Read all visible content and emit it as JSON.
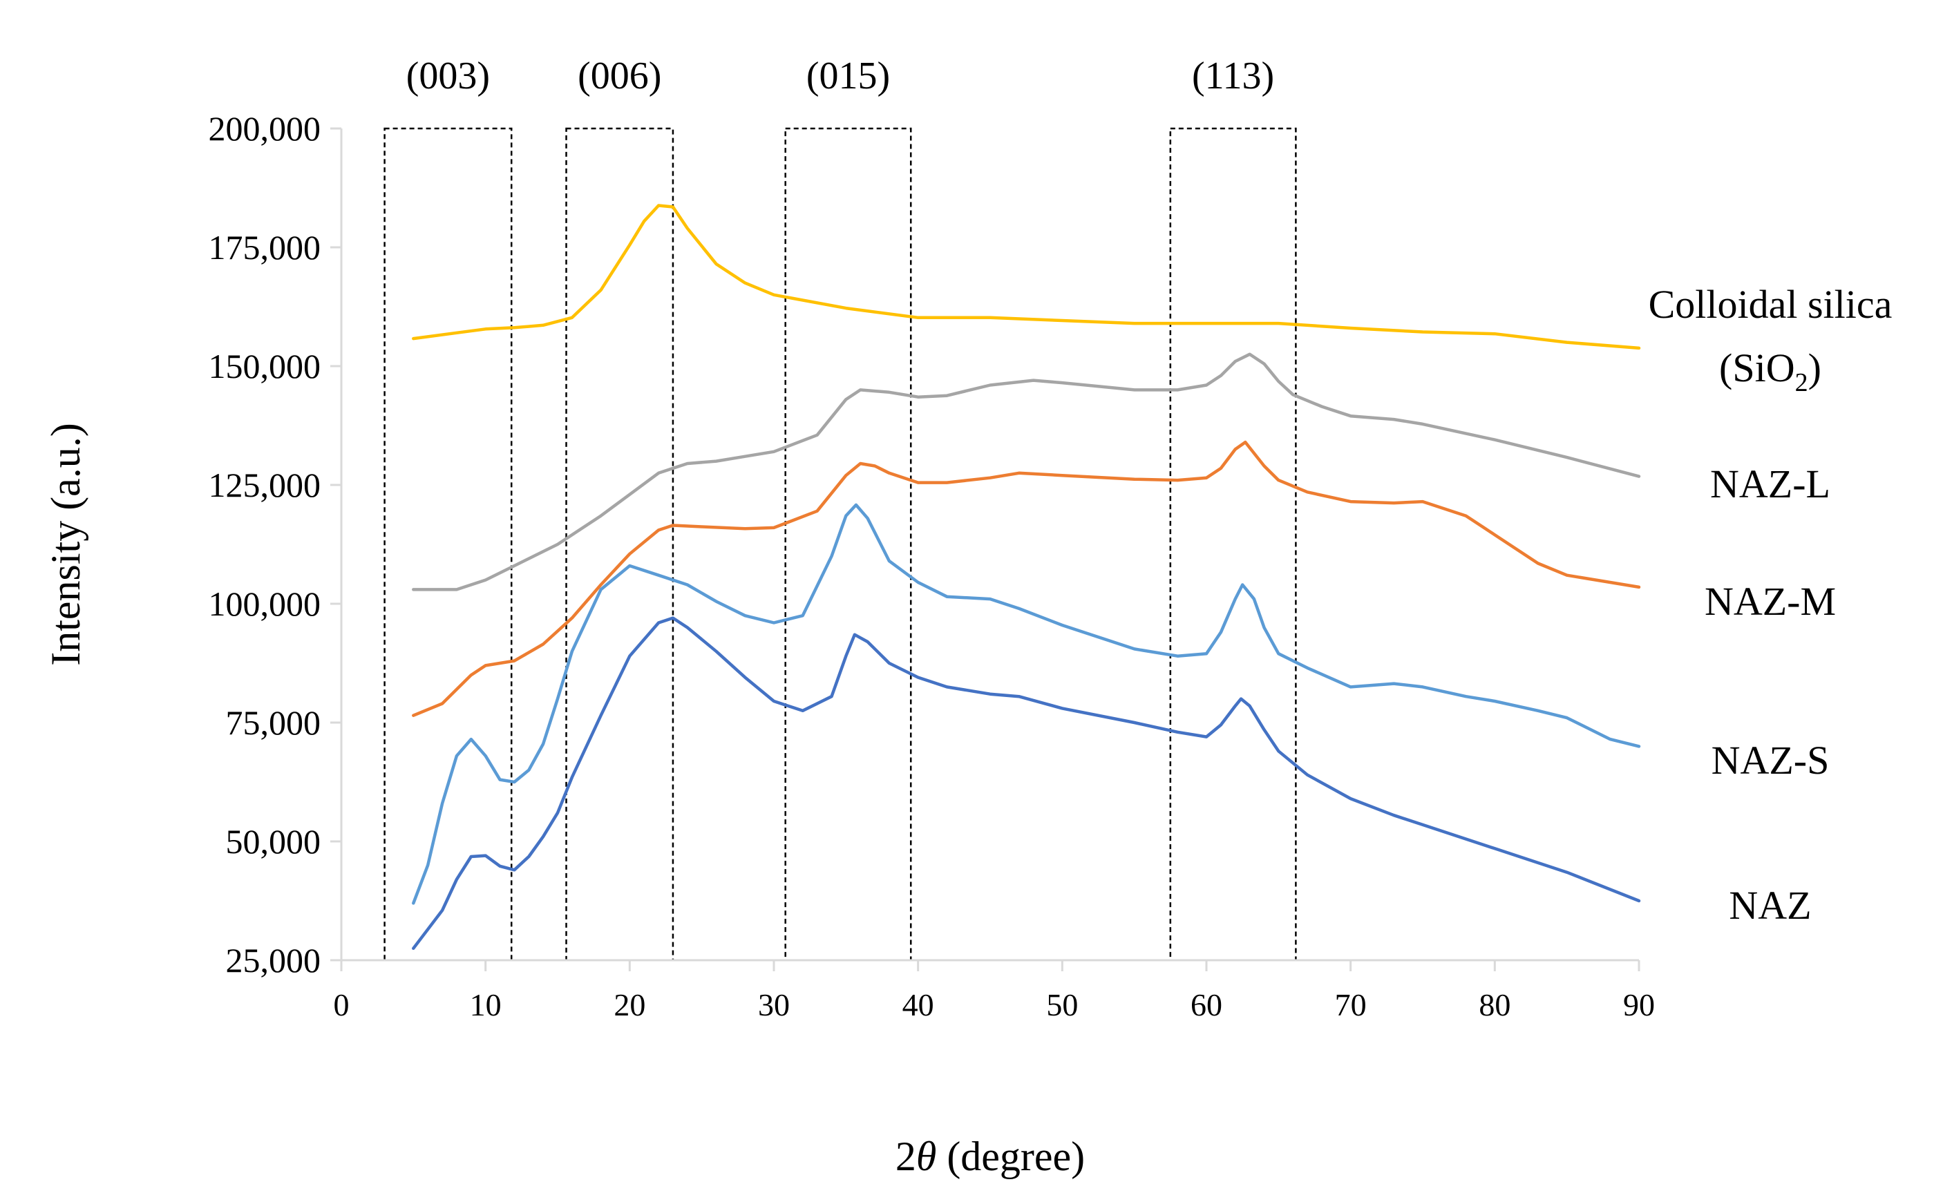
{
  "chart_data": {
    "type": "line",
    "title": "",
    "xlabel": {
      "prefix": "2",
      "symbol": "θ",
      "suffix": " (degree)"
    },
    "ylabel": "Intensity (a.u.)",
    "xlim": [
      0,
      90
    ],
    "ylim": [
      25000,
      200000
    ],
    "xticks": [
      0,
      10,
      20,
      30,
      40,
      50,
      60,
      70,
      80,
      90
    ],
    "xtick_labels": [
      "0",
      "10",
      "20",
      "30",
      "40",
      "50",
      "60",
      "70",
      "80",
      "90"
    ],
    "yticks": [
      25000,
      50000,
      75000,
      100000,
      125000,
      150000,
      175000,
      200000
    ],
    "ytick_labels": [
      "25,000",
      "50,000",
      "75,000",
      "100,000",
      "125,000",
      "150,000",
      "175,000",
      "200,000"
    ],
    "grid": false,
    "peak_regions": [
      {
        "label": "(003)",
        "x_range": [
          3.0,
          11.8
        ]
      },
      {
        "label": "(006)",
        "x_range": [
          15.6,
          23.0
        ]
      },
      {
        "label": "(015)",
        "x_range": [
          30.8,
          39.5
        ]
      },
      {
        "label": "(113)",
        "x_range": [
          57.5,
          66.2
        ]
      }
    ],
    "series": [
      {
        "name": "Colloidal silica (SiO2)",
        "label_lines": [
          "Colloidal silica",
          "(SiO",
          "2",
          ")"
        ],
        "color": "#FFC000",
        "x": [
          5,
          8,
          10,
          12,
          14,
          16,
          18,
          20,
          21,
          22,
          23,
          24,
          26,
          28,
          30,
          35,
          40,
          45,
          50,
          55,
          60,
          65,
          70,
          75,
          80,
          85,
          90
        ],
        "y": [
          155800,
          157000,
          157800,
          158100,
          158600,
          160200,
          166000,
          175500,
          180500,
          183800,
          183500,
          179000,
          171500,
          167500,
          165000,
          162200,
          160200,
          160200,
          159600,
          159000,
          159000,
          159000,
          158000,
          157200,
          156800,
          155000,
          153800
        ]
      },
      {
        "name": "NAZ-L",
        "label_lines": [
          "NAZ-L"
        ],
        "color": "#A5A5A5",
        "x": [
          5,
          8,
          10,
          12,
          15,
          18,
          20,
          22,
          24,
          26,
          28,
          30,
          33,
          35,
          36,
          38,
          40,
          42,
          45,
          48,
          50,
          55,
          58,
          60,
          61,
          62,
          63,
          64,
          65,
          66,
          68,
          70,
          73,
          75,
          80,
          85,
          90
        ],
        "y": [
          103000,
          103000,
          105000,
          108000,
          112500,
          118500,
          123000,
          127500,
          129500,
          130000,
          131000,
          132000,
          135500,
          143000,
          145000,
          144500,
          143500,
          143800,
          146000,
          147000,
          146500,
          145000,
          145000,
          146000,
          148000,
          151000,
          152500,
          150500,
          146800,
          144000,
          141500,
          139500,
          138800,
          137800,
          134500,
          130800,
          126800
        ]
      },
      {
        "name": "NAZ-M",
        "label_lines": [
          "NAZ-M"
        ],
        "color": "#ED7D31",
        "x": [
          5,
          7,
          9,
          10,
          11,
          12,
          14,
          16,
          18,
          20,
          22,
          23,
          25,
          28,
          30,
          33,
          35,
          36,
          37,
          38,
          40,
          42,
          45,
          47,
          50,
          55,
          58,
          60,
          61,
          62,
          62.7,
          64,
          65,
          67,
          70,
          73,
          75,
          78,
          80,
          83,
          85,
          90
        ],
        "y": [
          76500,
          79000,
          85000,
          87000,
          87500,
          88000,
          91500,
          97000,
          104000,
          110500,
          115500,
          116500,
          116200,
          115800,
          116000,
          119500,
          127000,
          129500,
          129000,
          127500,
          125500,
          125500,
          126500,
          127500,
          127000,
          126200,
          126000,
          126500,
          128500,
          132500,
          134000,
          129000,
          126000,
          123500,
          121500,
          121200,
          121500,
          118500,
          114500,
          108500,
          106000,
          103500
        ]
      },
      {
        "name": "NAZ-S",
        "label_lines": [
          "NAZ-S"
        ],
        "color": "#5B9BD5",
        "x": [
          5,
          6,
          7,
          8,
          9,
          10,
          11,
          12,
          13,
          14,
          15,
          16,
          18,
          20,
          22,
          24,
          26,
          28,
          30,
          32,
          34,
          35,
          35.7,
          36.5,
          38,
          40,
          42,
          45,
          47,
          50,
          55,
          58,
          60,
          61,
          62,
          62.5,
          63.3,
          64,
          65,
          67,
          70,
          73,
          75,
          78,
          80,
          83,
          85,
          88,
          90
        ],
        "y": [
          37000,
          45000,
          58000,
          68000,
          71500,
          68000,
          63000,
          62500,
          65000,
          70500,
          80000,
          90000,
          103000,
          108000,
          106000,
          104000,
          100500,
          97500,
          96000,
          97500,
          110000,
          118500,
          120800,
          118000,
          109000,
          104500,
          101500,
          101000,
          99000,
          95500,
          90500,
          89000,
          89500,
          94000,
          101000,
          104000,
          101000,
          95000,
          89500,
          86500,
          82500,
          83200,
          82500,
          80500,
          79500,
          77500,
          76000,
          71500,
          70000
        ]
      },
      {
        "name": "NAZ",
        "label_lines": [
          "NAZ"
        ],
        "color": "#4472C4",
        "x": [
          5,
          7,
          8,
          9,
          10,
          11,
          12,
          13,
          14,
          15,
          16,
          18,
          20,
          22,
          23,
          24,
          26,
          28,
          30,
          32,
          34,
          35,
          35.6,
          36.5,
          38,
          40,
          42,
          45,
          47,
          50,
          55,
          58,
          60,
          61,
          62,
          62.4,
          63,
          64,
          65,
          67,
          70,
          73,
          75,
          80,
          85,
          90
        ],
        "y": [
          27500,
          35500,
          42000,
          46800,
          47000,
          44800,
          44000,
          46800,
          51000,
          56000,
          63500,
          76500,
          89000,
          96000,
          97000,
          95000,
          90000,
          84500,
          79500,
          77500,
          80500,
          89000,
          93500,
          92000,
          87500,
          84500,
          82500,
          81000,
          80500,
          78000,
          75000,
          73000,
          72000,
          74500,
          78500,
          80000,
          78500,
          73500,
          69000,
          64000,
          59000,
          55500,
          53500,
          48500,
          43500,
          37500
        ]
      }
    ]
  }
}
